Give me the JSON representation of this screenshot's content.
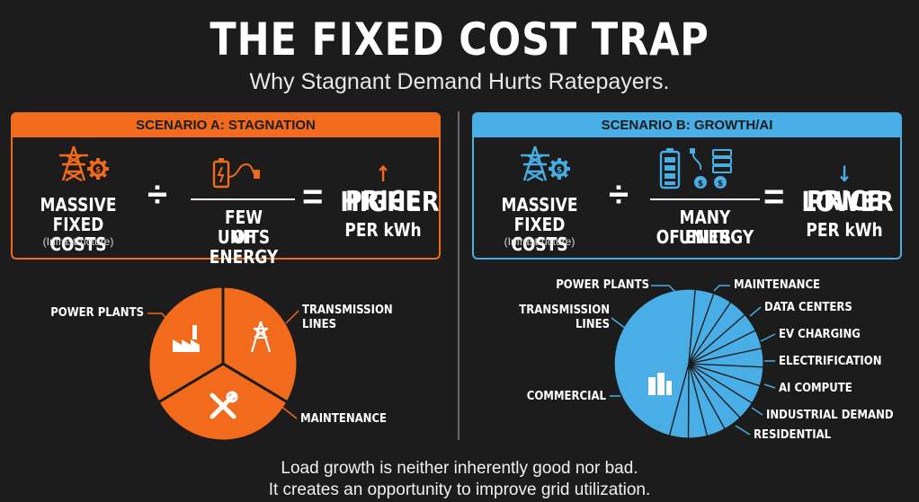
{
  "title": "THE FIXED COST TRAP",
  "subtitle": "Why Stagnant Demand Hurts Ratepayers.",
  "colors": {
    "orange": "#f26a1b",
    "blue": "#49aee6",
    "background": "#1c1c1c"
  },
  "scenario_a": {
    "header": "SCENARIO A: STAGNATION",
    "numerator_line1": "MASSIVE",
    "numerator_line2": "FIXED COSTS",
    "numerator_note": "(Infrastructure)",
    "divide": "÷",
    "denominator_line1": "FEW UNITS",
    "denominator_line2": "OF ENERGY",
    "equals": "=",
    "result_arrow": "↑",
    "result_line1": "HIGHER",
    "result_line2": "PRICE",
    "result_line3": "PER kWh",
    "icons": [
      "transmission-tower-icon",
      "dollar-gear-icon",
      "battery-plug-icon"
    ]
  },
  "scenario_b": {
    "header": "SCENARIO B: GROWTH/AI",
    "numerator_line1": "MASSIVE",
    "numerator_line2": "FIXED COSTS",
    "numerator_note": "(Infrastructure)",
    "divide": "÷",
    "denominator_line1": "MANY UNITS",
    "denominator_line2": "OF ENERGY",
    "equals": "=",
    "result_arrow": "↓",
    "result_line1": "LOWER",
    "result_line2": "PRICE",
    "result_line3": "PER kWh",
    "icons": [
      "transmission-tower-icon",
      "dollar-gear-icon",
      "battery-plug-server-icon"
    ]
  },
  "pie_a": {
    "slices": [
      {
        "label": "POWER PLANTS",
        "value": 1,
        "icon": "factory-icon"
      },
      {
        "label_line1": "TRANSMISSION",
        "label_line2": "LINES",
        "value": 1,
        "icon": "transmission-tower-icon"
      },
      {
        "label": "MAINTENANCE",
        "value": 1,
        "icon": "wrench-icon"
      }
    ]
  },
  "pie_b": {
    "labels": {
      "power_plants": "POWER PLANTS",
      "maintenance": "MAINTENANCE",
      "transmission_line1": "TRANSMISSION",
      "transmission_line2": "LINES",
      "data_centers": "DATA CENTERS",
      "ev_charging": "EV CHARGING",
      "electrification": "ELECTRIFICATION",
      "ai_compute": "AI COMPUTE",
      "industrial_demand": "INDUSTRIAL DEMAND",
      "residential": "RESIDENTIAL",
      "commercial": "COMMERCIAL"
    },
    "slice_count": 14,
    "center_icon": "office-building-icon"
  },
  "footer_line1": "Load growth is neither inherently good nor bad.",
  "footer_line2": "It creates an opportunity to improve grid utilization."
}
